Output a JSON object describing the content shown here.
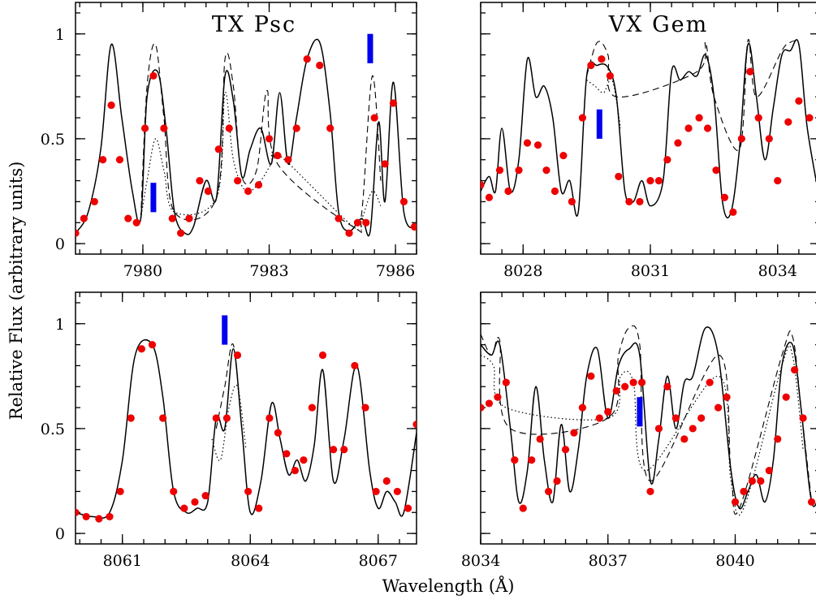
{
  "figure": {
    "ylabel": "Relative Flux (arbitrary units)",
    "xlabel": "Wavelength (Å)"
  },
  "colors": {
    "observed": "#ee0000",
    "marker": "#0000ee",
    "model": "#000000"
  },
  "chart_data": [
    {
      "type": "line",
      "title": "TX Psc",
      "xlim": [
        7978.4,
        7986.5
      ],
      "ylim": [
        -0.05,
        1.15
      ],
      "xticks": [
        7980,
        7983,
        7986
      ],
      "yticks": [
        0,
        0.5,
        1
      ],
      "ytick_labels": [
        "0",
        "0.5",
        "1"
      ],
      "markers": [
        {
          "x": 7980.25,
          "y": [
            0.15,
            0.29
          ]
        },
        {
          "x": 7985.4,
          "y": [
            0.86,
            1.0
          ]
        }
      ],
      "series": [
        {
          "style": "solid",
          "x": [
            7978.4,
            7978.7,
            7979.0,
            7979.25,
            7979.5,
            7979.75,
            7979.95,
            7980.1,
            7980.35,
            7980.55,
            7980.75,
            7981.0,
            7981.2,
            7981.5,
            7981.75,
            7981.95,
            7982.15,
            7982.35,
            7982.55,
            7982.8,
            7983.05,
            7983.25,
            7983.45,
            7983.65,
            7983.9,
            7984.2,
            7984.45,
            7984.65,
            7984.9,
            7985.2,
            7985.4,
            7985.6,
            7985.75,
            7985.95,
            7986.2,
            7986.5
          ],
          "y": [
            0.05,
            0.15,
            0.45,
            0.95,
            0.6,
            0.25,
            0.12,
            0.7,
            0.82,
            0.55,
            0.15,
            0.05,
            0.08,
            0.3,
            0.22,
            0.8,
            0.68,
            0.32,
            0.45,
            0.55,
            0.38,
            0.72,
            0.38,
            0.6,
            0.88,
            0.96,
            0.62,
            0.15,
            0.06,
            0.12,
            0.06,
            0.58,
            0.2,
            0.77,
            0.15,
            0.08
          ]
        },
        {
          "style": "dashed",
          "x": [
            7979.95,
            7980.1,
            7980.3,
            7980.5,
            7980.75,
            7981.75,
            7981.95,
            7982.15,
            7982.35,
            7982.7,
            7982.95,
            7983.2,
            7985.0,
            7985.2,
            7985.45,
            7985.65
          ],
          "y": [
            0.12,
            0.75,
            0.95,
            0.6,
            0.15,
            0.22,
            0.88,
            0.75,
            0.32,
            0.35,
            0.73,
            0.38,
            0.08,
            0.15,
            0.8,
            0.3
          ]
        },
        {
          "style": "dotted",
          "x": [
            7979.95,
            7980.1,
            7980.3,
            7980.5,
            7980.75,
            7981.75,
            7981.95,
            7982.15,
            7982.45,
            7982.8,
            7983.05,
            7983.25,
            7985.0,
            7985.2,
            7985.45,
            7985.65
          ],
          "y": [
            0.12,
            0.3,
            0.5,
            0.35,
            0.15,
            0.22,
            0.72,
            0.4,
            0.25,
            0.3,
            0.38,
            0.42,
            0.08,
            0.12,
            0.25,
            0.18
          ]
        },
        {
          "style": "points",
          "x": [
            7978.4,
            7978.6,
            7978.85,
            7979.05,
            7979.25,
            7979.45,
            7979.65,
            7979.85,
            7980.05,
            7980.25,
            7980.5,
            7980.7,
            7980.9,
            7981.1,
            7981.35,
            7981.55,
            7981.8,
            7982.05,
            7982.25,
            7982.5,
            7982.75,
            7983.0,
            7983.2,
            7983.45,
            7983.65,
            7983.9,
            7984.2,
            7984.45,
            7984.65,
            7984.9,
            7985.1,
            7985.3,
            7985.5,
            7985.75,
            7985.95,
            7986.2,
            7986.45
          ],
          "y": [
            0.05,
            0.12,
            0.2,
            0.4,
            0.66,
            0.4,
            0.12,
            0.1,
            0.55,
            0.8,
            0.55,
            0.12,
            0.05,
            0.12,
            0.3,
            0.25,
            0.45,
            0.55,
            0.3,
            0.25,
            0.28,
            0.5,
            0.42,
            0.4,
            0.55,
            0.88,
            0.85,
            0.55,
            0.12,
            0.05,
            0.1,
            0.1,
            0.6,
            0.38,
            0.67,
            0.2,
            0.08
          ]
        }
      ]
    },
    {
      "type": "line",
      "title": "VX Gem",
      "xlim": [
        8027.0,
        8035.0
      ],
      "ylim": [
        -0.05,
        1.15
      ],
      "xticks": [
        8028,
        8031,
        8034
      ],
      "yticks": [
        0,
        0.5,
        1
      ],
      "ytick_labels": [
        "",
        "",
        ""
      ],
      "markers": [
        {
          "x": 8029.8,
          "y": [
            0.5,
            0.64
          ]
        }
      ],
      "series": [
        {
          "style": "solid",
          "x": [
            8027.0,
            8027.2,
            8027.35,
            8027.5,
            8027.7,
            8027.9,
            8028.1,
            8028.3,
            8028.5,
            8028.7,
            8028.9,
            8029.1,
            8029.3,
            8029.5,
            8029.75,
            8030.0,
            8030.2,
            8030.4,
            8030.6,
            8030.8,
            8031.0,
            8031.3,
            8031.5,
            8031.7,
            8031.9,
            8032.1,
            8032.3,
            8032.5,
            8032.7,
            8032.9,
            8033.1,
            8033.3,
            8033.5,
            8033.7,
            8033.9,
            8034.1,
            8034.3,
            8034.5,
            8034.7,
            8035.0
          ],
          "y": [
            0.25,
            0.32,
            0.25,
            0.55,
            0.25,
            0.4,
            0.88,
            0.7,
            0.75,
            0.6,
            0.25,
            0.3,
            0.15,
            0.8,
            0.85,
            0.84,
            0.7,
            0.25,
            0.2,
            0.3,
            0.18,
            0.3,
            0.82,
            0.78,
            0.82,
            0.8,
            0.9,
            0.7,
            0.2,
            0.15,
            0.45,
            0.95,
            0.7,
            0.4,
            0.65,
            0.9,
            0.92,
            0.95,
            0.55,
            0.2
          ]
        },
        {
          "style": "dashed",
          "x": [
            8029.5,
            8029.75,
            8030.0,
            8030.2,
            8032.1,
            8032.3,
            8032.5,
            8033.1,
            8033.3,
            8033.5,
            8034.1,
            8034.3,
            8034.5
          ],
          "y": [
            0.8,
            0.96,
            0.9,
            0.7,
            0.82,
            0.96,
            0.7,
            0.45,
            0.97,
            0.7,
            0.92,
            0.96,
            0.97
          ]
        },
        {
          "style": "dotted",
          "x": [
            8029.5,
            8029.7,
            8029.9,
            8030.1,
            8030.3
          ],
          "y": [
            0.78,
            0.75,
            0.72,
            0.78,
            0.55
          ]
        },
        {
          "style": "points",
          "x": [
            8027.0,
            8027.2,
            8027.45,
            8027.65,
            8027.9,
            8028.1,
            8028.35,
            8028.55,
            8028.75,
            8028.95,
            8029.15,
            8029.4,
            8029.6,
            8029.85,
            8030.05,
            8030.25,
            8030.5,
            8030.75,
            8031.0,
            8031.2,
            8031.4,
            8031.65,
            8031.9,
            8032.15,
            8032.35,
            8032.55,
            8032.75,
            8032.95,
            8033.15,
            8033.35,
            8033.55,
            8033.8,
            8034.0,
            8034.25,
            8034.5,
            8034.75,
            8035.0
          ],
          "y": [
            0.28,
            0.22,
            0.35,
            0.25,
            0.35,
            0.48,
            0.47,
            0.35,
            0.25,
            0.42,
            0.2,
            0.6,
            0.85,
            0.88,
            0.8,
            0.32,
            0.2,
            0.2,
            0.3,
            0.3,
            0.4,
            0.48,
            0.55,
            0.6,
            0.55,
            0.35,
            0.22,
            0.15,
            0.5,
            0.82,
            0.6,
            0.5,
            0.3,
            0.58,
            0.68,
            0.6,
            0.18
          ]
        }
      ]
    },
    {
      "type": "line",
      "title": "",
      "xlim": [
        8059.9,
        8067.9
      ],
      "ylim": [
        -0.05,
        1.15
      ],
      "xticks": [
        8061,
        8064,
        8067
      ],
      "yticks": [
        0,
        0.5,
        1
      ],
      "ytick_labels": [
        "0",
        "0.5",
        "1"
      ],
      "markers": [
        {
          "x": 8063.4,
          "y": [
            0.9,
            1.04
          ]
        }
      ],
      "series": [
        {
          "style": "solid",
          "x": [
            8059.9,
            8060.3,
            8060.7,
            8061.0,
            8061.3,
            8061.7,
            8061.95,
            8062.2,
            8062.5,
            8062.75,
            8063.0,
            8063.2,
            8063.4,
            8063.6,
            8063.8,
            8064.0,
            8064.25,
            8064.5,
            8064.7,
            8064.9,
            8065.1,
            8065.3,
            8065.5,
            8065.7,
            8065.95,
            8066.2,
            8066.5,
            8066.8,
            8067.0,
            8067.2,
            8067.4,
            8067.6,
            8067.9
          ],
          "y": [
            0.1,
            0.08,
            0.1,
            0.35,
            0.85,
            0.9,
            0.65,
            0.2,
            0.1,
            0.12,
            0.15,
            0.55,
            0.5,
            0.88,
            0.5,
            0.1,
            0.25,
            0.62,
            0.45,
            0.28,
            0.35,
            0.25,
            0.42,
            0.78,
            0.25,
            0.45,
            0.8,
            0.3,
            0.12,
            0.2,
            0.15,
            0.1,
            0.48
          ]
        },
        {
          "style": "dashed",
          "x": [
            8063.2,
            8063.4,
            8063.6,
            8063.8
          ],
          "y": [
            0.5,
            0.7,
            0.9,
            0.5
          ]
        },
        {
          "style": "dotted",
          "x": [
            8063.1,
            8063.3,
            8063.5,
            8063.7,
            8063.9
          ],
          "y": [
            0.45,
            0.35,
            0.6,
            0.7,
            0.4
          ]
        },
        {
          "style": "points",
          "x": [
            8059.9,
            8060.15,
            8060.45,
            8060.7,
            8060.95,
            8061.2,
            8061.45,
            8061.7,
            8061.95,
            8062.2,
            8062.45,
            8062.7,
            8062.95,
            8063.2,
            8063.45,
            8063.7,
            8063.95,
            8064.2,
            8064.45,
            8064.65,
            8064.85,
            8065.05,
            8065.25,
            8065.45,
            8065.7,
            8065.95,
            8066.2,
            8066.45,
            8066.7,
            8066.95,
            8067.2,
            8067.45,
            8067.7,
            8067.9
          ],
          "y": [
            0.1,
            0.08,
            0.07,
            0.08,
            0.2,
            0.55,
            0.88,
            0.9,
            0.55,
            0.2,
            0.12,
            0.15,
            0.18,
            0.55,
            0.55,
            0.85,
            0.2,
            0.12,
            0.55,
            0.48,
            0.38,
            0.3,
            0.35,
            0.6,
            0.85,
            0.4,
            0.4,
            0.8,
            0.6,
            0.2,
            0.25,
            0.2,
            0.12,
            0.52
          ]
        }
      ]
    },
    {
      "type": "line",
      "title": "",
      "xlim": [
        8034.0,
        8042.0
      ],
      "ylim": [
        -0.05,
        1.15
      ],
      "xticks": [
        8034,
        8037,
        8040
      ],
      "yticks": [
        0,
        0.5,
        1
      ],
      "ytick_labels": [
        "",
        "",
        ""
      ],
      "markers": [
        {
          "x": 8037.75,
          "y": [
            0.51,
            0.65
          ]
        }
      ],
      "series": [
        {
          "style": "solid",
          "x": [
            8034.0,
            8034.25,
            8034.45,
            8034.7,
            8034.9,
            8035.1,
            8035.3,
            8035.5,
            8035.7,
            8035.9,
            8036.1,
            8036.3,
            8036.5,
            8036.75,
            8037.0,
            8037.25,
            8037.5,
            8037.75,
            8038.0,
            8038.2,
            8038.4,
            8038.6,
            8038.8,
            8039.0,
            8039.3,
            8039.6,
            8039.9,
            8040.1,
            8040.3,
            8040.5,
            8040.7,
            8040.9,
            8041.1,
            8041.35,
            8041.55,
            8041.8,
            8042.0
          ],
          "y": [
            0.9,
            0.85,
            0.9,
            0.5,
            0.15,
            0.3,
            0.7,
            0.35,
            0.15,
            0.52,
            0.2,
            0.4,
            0.75,
            0.88,
            0.55,
            0.8,
            0.88,
            0.85,
            0.25,
            0.45,
            0.75,
            0.5,
            0.72,
            0.75,
            0.98,
            0.85,
            0.3,
            0.12,
            0.2,
            0.28,
            0.15,
            0.35,
            0.8,
            0.9,
            0.6,
            0.15,
            0.2
          ]
        },
        {
          "style": "dashed",
          "x": [
            8034.0,
            8034.25,
            8034.45,
            8034.7,
            8037.0,
            8037.25,
            8037.5,
            8037.75,
            8038.0,
            8039.6,
            8039.9,
            8040.1,
            8041.1,
            8041.35,
            8041.55,
            8041.8
          ],
          "y": [
            0.95,
            0.85,
            0.92,
            0.5,
            0.55,
            0.85,
            0.98,
            0.9,
            0.25,
            0.85,
            0.3,
            0.12,
            0.85,
            0.94,
            0.6,
            0.15
          ]
        },
        {
          "style": "dotted",
          "x": [
            8034.0,
            8034.3,
            8034.6,
            8037.0,
            8037.3,
            8037.6,
            8037.9,
            8039.6,
            8039.9,
            8040.2,
            8041.1,
            8041.35,
            8041.6
          ],
          "y": [
            0.85,
            0.8,
            0.6,
            0.55,
            0.75,
            0.72,
            0.3,
            0.75,
            0.25,
            0.12,
            0.8,
            0.85,
            0.4
          ]
        },
        {
          "style": "points",
          "x": [
            8034.0,
            8034.2,
            8034.4,
            8034.6,
            8034.8,
            8035.0,
            8035.2,
            8035.4,
            8035.6,
            8035.8,
            8036.0,
            8036.2,
            8036.4,
            8036.6,
            8036.8,
            8037.0,
            8037.2,
            8037.4,
            8037.6,
            8037.8,
            8038.0,
            8038.2,
            8038.4,
            8038.6,
            8038.8,
            8039.0,
            8039.2,
            8039.4,
            8039.6,
            8039.8,
            8040.0,
            8040.2,
            8040.4,
            8040.6,
            8040.8,
            8041.0,
            8041.2,
            8041.4,
            8041.6,
            8041.8,
            8042.0
          ],
          "y": [
            0.6,
            0.62,
            0.65,
            0.72,
            0.35,
            0.12,
            0.35,
            0.45,
            0.2,
            0.25,
            0.4,
            0.48,
            0.6,
            0.75,
            0.55,
            0.58,
            0.68,
            0.7,
            0.72,
            0.72,
            0.2,
            0.5,
            0.7,
            0.55,
            0.45,
            0.5,
            0.55,
            0.72,
            0.6,
            0.65,
            0.15,
            0.2,
            0.25,
            0.25,
            0.3,
            0.45,
            0.65,
            0.78,
            0.55,
            0.15,
            0.2
          ]
        }
      ]
    }
  ]
}
